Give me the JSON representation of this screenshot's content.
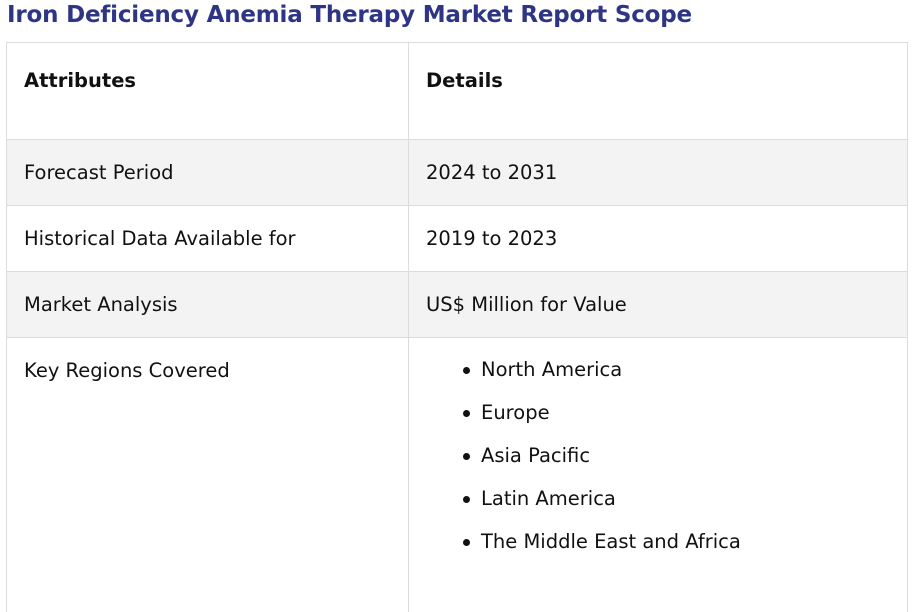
{
  "report": {
    "title": "Iron Deficiency Anemia Therapy Market Report Scope",
    "columns": {
      "attributes": "Attributes",
      "details": "Details"
    },
    "rows": [
      {
        "attribute": "Forecast Period",
        "detail": "2024 to 2031"
      },
      {
        "attribute": "Historical Data Available for",
        "detail": "2019 to 2023"
      },
      {
        "attribute": "Market Analysis",
        "detail": "US$ Million for Value"
      }
    ],
    "regions": {
      "attribute": "Key Regions Covered",
      "items": [
        "North America",
        "Europe",
        "Asia Pacific",
        "Latin America",
        "The Middle East and Africa"
      ]
    }
  },
  "colors": {
    "title": "#2e3585",
    "row_shade": "#f3f3f3",
    "border": "#dcdcdc"
  }
}
